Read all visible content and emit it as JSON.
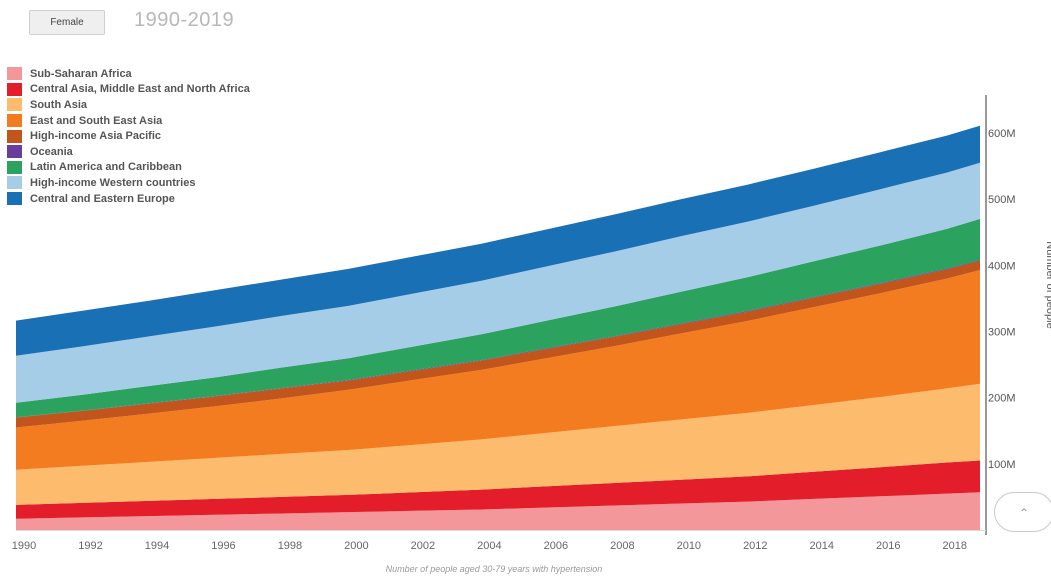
{
  "header": {
    "sex_button_label": "Female",
    "period": "1990-2019"
  },
  "scroll_top_icon": "chevron-up-icon",
  "chart_data": {
    "type": "area",
    "stacked": true,
    "title": "",
    "xlabel": "Number of people aged 30-79 years with hypertension",
    "ylabel": "Number of people",
    "x": [
      1990,
      1992,
      1994,
      1996,
      1998,
      2000,
      2002,
      2004,
      2006,
      2008,
      2010,
      2012,
      2014,
      2016,
      2018,
      2019
    ],
    "x_ticks": [
      "1990",
      "1992",
      "1994",
      "1996",
      "1998",
      "2000",
      "2002",
      "2004",
      "2006",
      "2008",
      "2010",
      "2012",
      "2014",
      "2016",
      "2018"
    ],
    "y_ticks": [
      "100M",
      "200M",
      "300M",
      "400M",
      "500M",
      "600M"
    ],
    "y_tick_values": [
      100,
      200,
      300,
      400,
      500,
      600
    ],
    "ylim": [
      0,
      650
    ],
    "y_axis_position": "right",
    "legend_position": "top-left",
    "series": [
      {
        "name": "Sub-Saharan Africa",
        "color": "#f4979a",
        "values": [
          17,
          19,
          21,
          23,
          25,
          27,
          29,
          31,
          34,
          37,
          40,
          43,
          47,
          51,
          55,
          57
        ]
      },
      {
        "name": "Central Asia, Middle East and North Africa",
        "color": "#e31e2a",
        "values": [
          21,
          22,
          23,
          24,
          25,
          26,
          28,
          30,
          32,
          34,
          36,
          38,
          41,
          44,
          47,
          48
        ]
      },
      {
        "name": "South Asia",
        "color": "#fdbb6e",
        "values": [
          53,
          56,
          59,
          62,
          65,
          68,
          72,
          76,
          81,
          86,
          91,
          96,
          101,
          106,
          112,
          116
        ]
      },
      {
        "name": "East and South East Asia",
        "color": "#f47c20",
        "values": [
          64,
          68,
          73,
          78,
          84,
          91,
          98,
          105,
          113,
          121,
          130,
          139,
          148,
          157,
          166,
          172
        ]
      },
      {
        "name": "High-income Asia Pacific",
        "color": "#c1551c",
        "values": [
          15,
          15,
          15,
          15,
          15,
          14,
          14,
          14,
          14,
          14,
          14,
          14,
          14,
          14,
          14,
          14
        ]
      },
      {
        "name": "Oceania",
        "color": "#6a3d9a",
        "values": [
          0.5,
          0.5,
          0.6,
          0.6,
          0.7,
          0.7,
          0.8,
          0.8,
          0.9,
          0.9,
          1,
          1,
          1.1,
          1.1,
          1.2,
          1.2
        ]
      },
      {
        "name": "Latin America and Caribbean",
        "color": "#2ca25f",
        "values": [
          22,
          24,
          26,
          28,
          31,
          33,
          36,
          39,
          42,
          45,
          48,
          51,
          54,
          57,
          60,
          62
        ]
      },
      {
        "name": "High-income Western countries",
        "color": "#a6cde8",
        "values": [
          71,
          73,
          75,
          77,
          78,
          79,
          80,
          81,
          82,
          83,
          84,
          84,
          84,
          85,
          85,
          85
        ]
      },
      {
        "name": "Central and Eastern Europe",
        "color": "#1a70b5",
        "values": [
          53,
          54,
          54,
          55,
          55,
          56,
          56,
          56,
          56,
          56,
          56,
          56,
          56,
          56,
          56,
          56
        ]
      }
    ]
  }
}
